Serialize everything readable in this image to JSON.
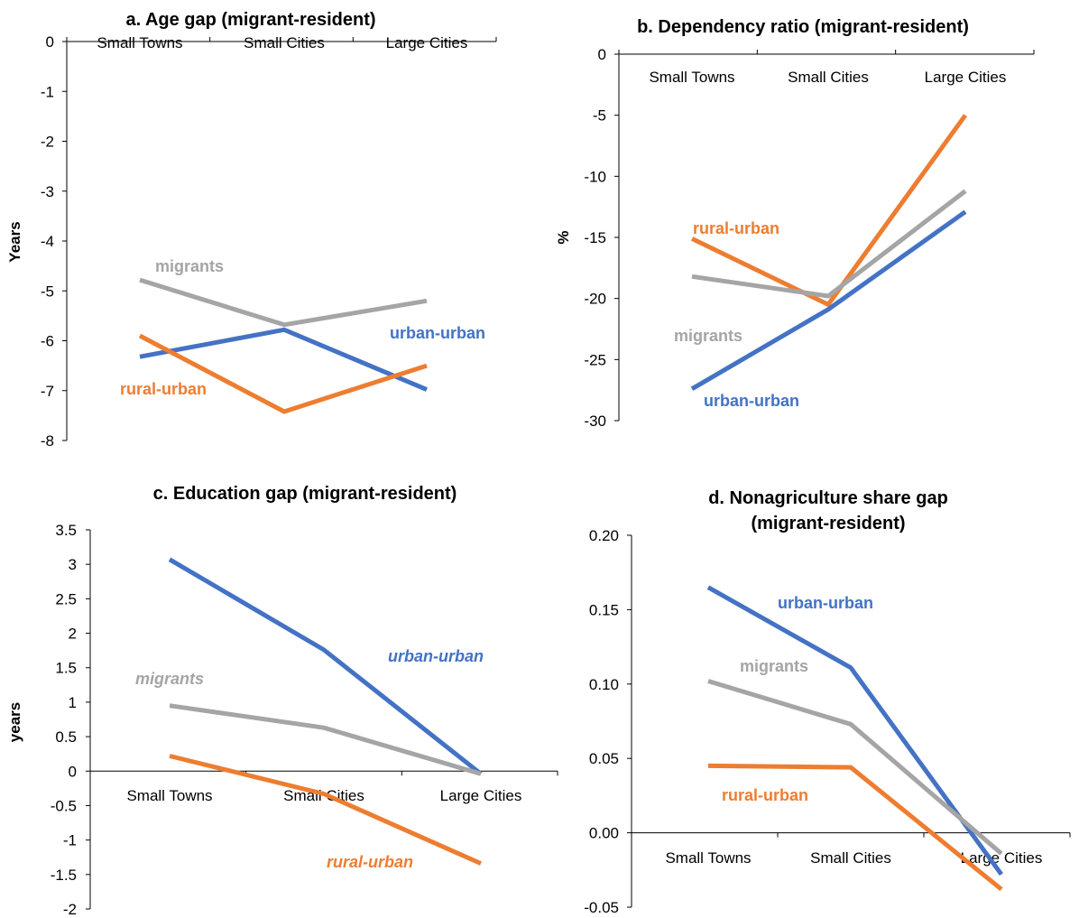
{
  "colors": {
    "urban-urban": "#4472c4",
    "rural-urban": "#ed7d31",
    "migrants": "#a5a5a5"
  },
  "chart_data": [
    {
      "type": "line",
      "title": "a. Age gap (migrant-resident)",
      "ylabel": "Years",
      "categories": [
        "Small Towns",
        "Small Cities",
        "Large Cities"
      ],
      "category_axis_position": "top",
      "ylim": [
        -8,
        0
      ],
      "yticks": [
        0,
        -1,
        -2,
        -3,
        -4,
        -5,
        -6,
        -7,
        -8
      ],
      "ytick_labels": [
        "0",
        "-1",
        "-2",
        "-3",
        "-4",
        "-5",
        "-6",
        "-7",
        "-8"
      ],
      "series": [
        {
          "name": "migrants",
          "color_key": "migrants",
          "values": [
            -4.78,
            -5.68,
            -5.2
          ]
        },
        {
          "name": "urban-urban",
          "color_key": "urban-urban",
          "values": [
            -6.32,
            -5.78,
            -6.98
          ]
        },
        {
          "name": "rural-urban",
          "color_key": "rural-urban",
          "values": [
            -5.9,
            -7.42,
            -6.5
          ]
        }
      ]
    },
    {
      "type": "line",
      "title": "b. Dependency ratio (migrant-resident)",
      "ylabel": "%",
      "categories": [
        "Small Towns",
        "Small Cities",
        "Large Cities"
      ],
      "category_axis_position": "top",
      "ylim": [
        -30,
        0
      ],
      "yticks": [
        0,
        -5,
        -10,
        -15,
        -20,
        -25,
        -30
      ],
      "ytick_labels": [
        "0",
        "-5",
        "-10",
        "-15",
        "-20",
        "-25",
        "-30"
      ],
      "series": [
        {
          "name": "rural-urban",
          "color_key": "rural-urban",
          "values": [
            -15.1,
            -20.5,
            -5.0
          ]
        },
        {
          "name": "migrants",
          "color_key": "migrants",
          "values": [
            -18.2,
            -19.8,
            -11.2
          ]
        },
        {
          "name": "urban-urban",
          "color_key": "urban-urban",
          "values": [
            -27.4,
            -20.9,
            -12.9
          ]
        }
      ]
    },
    {
      "type": "line",
      "title": "c. Education gap (migrant-resident)",
      "ylabel": "years",
      "categories": [
        "Small Towns",
        "Small Cities",
        "Large Cities"
      ],
      "category_axis_position": "zero",
      "ylim": [
        -2,
        3.5
      ],
      "yticks": [
        3.5,
        3,
        2.5,
        2,
        1.5,
        1,
        0.5,
        0,
        -0.5,
        -1,
        -1.5,
        -2
      ],
      "ytick_labels": [
        "3.5",
        "3",
        "2.5",
        "2",
        "1.5",
        "1",
        "0.5",
        "0",
        "-0.5",
        "-1",
        "-1.5",
        "-2"
      ],
      "series": [
        {
          "name": "urban-urban",
          "color_key": "urban-urban",
          "values": [
            3.07,
            1.76,
            -0.04
          ]
        },
        {
          "name": "migrants",
          "color_key": "migrants",
          "values": [
            0.95,
            0.63,
            -0.04
          ]
        },
        {
          "name": "rural-urban",
          "color_key": "rural-urban",
          "values": [
            0.22,
            -0.33,
            -1.34
          ]
        }
      ]
    },
    {
      "type": "line",
      "title": "d. Nonagriculture share gap (migrant-resident)",
      "title_lines": [
        "d. Nonagriculture share gap",
        "(migrant-resident)"
      ],
      "ylabel": "",
      "categories": [
        "Small Towns",
        "Small Cities",
        "Large Cities"
      ],
      "category_axis_position": "zero",
      "ylim": [
        -0.05,
        0.2
      ],
      "yticks": [
        0.2,
        0.15,
        0.1,
        0.05,
        0.0,
        -0.05
      ],
      "ytick_labels": [
        "0.20",
        "0.15",
        "0.10",
        "0.05",
        "0.00",
        "-0.05"
      ],
      "series": [
        {
          "name": "urban-urban",
          "color_key": "urban-urban",
          "values": [
            0.165,
            0.111,
            -0.028
          ]
        },
        {
          "name": "migrants",
          "color_key": "migrants",
          "values": [
            0.102,
            0.073,
            -0.014
          ]
        },
        {
          "name": "rural-urban",
          "color_key": "rural-urban",
          "values": [
            0.045,
            0.044,
            -0.038
          ]
        }
      ]
    }
  ]
}
